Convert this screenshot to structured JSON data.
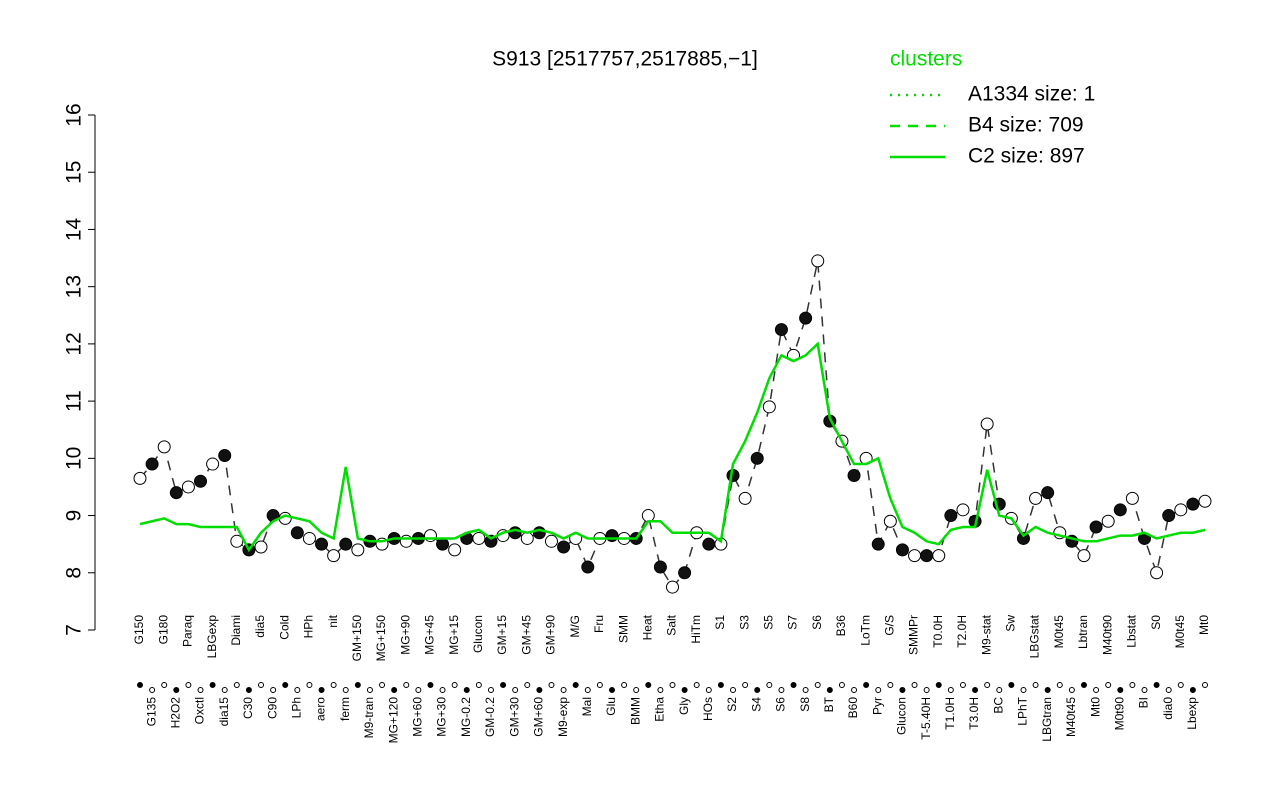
{
  "chart_data": {
    "type": "line",
    "title": "S913 [2517757,2517885,−1]",
    "legend_title": "clusters",
    "legend_position": "top-right",
    "categories": [
      "G150",
      "G135",
      "G180",
      "H2O2",
      "Paraq",
      "Oxctl",
      "LBGexp",
      "dia15",
      "Diami",
      "C30",
      "dia5",
      "C90",
      "Cold",
      "LPh",
      "HPh",
      "aero",
      "nit",
      "ferm",
      "GM+150",
      "M9-tran",
      "MG+150",
      "MG+120",
      "MG+90",
      "MG+60",
      "MG+45",
      "MG+30",
      "MG+15",
      "MG-0.2",
      "Glucon",
      "GM-0.2",
      "GM+15",
      "GM+30",
      "GM+45",
      "GM+60",
      "GM+90",
      "M9-exp",
      "M/G",
      "Mal",
      "Fru",
      "Glu",
      "SMM",
      "BMM",
      "Heat",
      "Etha",
      "Salt",
      "Gly",
      "HiTm",
      "HOs",
      "S1",
      "S2",
      "S3",
      "S4",
      "S5",
      "S6",
      "S7",
      "S8",
      "S6",
      "BT",
      "B36",
      "B60",
      "LoTm",
      "Pyr",
      "G/S",
      "Glucon",
      "SMMPr",
      "T-5.40H",
      "T0.0H",
      "T1.0H",
      "T2.0H",
      "T3.0H",
      "M9-stat",
      "BC",
      "Sw",
      "LPhT",
      "LBGstat",
      "LBGtran",
      "M0t45",
      "M40t45",
      "Lbtran",
      "Mt0",
      "M40t90",
      "M0t90",
      "Lbstat",
      "BI",
      "S0",
      "dia0",
      "M0t45",
      "Lbexp",
      "Mt0"
    ],
    "series": [
      {
        "name": "A1334 size: 1",
        "color": "#00dd00",
        "style": "dotted"
      },
      {
        "name": "B4 size: 709",
        "color": "#00dd00",
        "style": "dashed",
        "line_color": "#333333",
        "values": [
          9.65,
          9.9,
          10.2,
          9.4,
          9.5,
          9.6,
          9.9,
          10.05,
          8.55,
          8.4,
          8.45,
          9.0,
          8.95,
          8.7,
          8.6,
          8.5,
          8.3,
          8.5,
          8.4,
          8.55,
          8.5,
          8.6,
          8.55,
          8.6,
          8.65,
          8.5,
          8.4,
          8.6,
          8.6,
          8.55,
          8.65,
          8.7,
          8.6,
          8.7,
          8.55,
          8.45,
          8.6,
          8.1,
          8.6,
          8.65,
          8.6,
          8.6,
          9.0,
          8.1,
          7.75,
          8.0,
          8.7,
          8.5,
          8.5,
          9.7,
          9.3,
          10.0,
          10.9,
          12.25,
          11.8,
          12.45,
          13.45,
          10.65,
          10.3,
          9.7,
          10.0,
          8.5,
          8.9,
          8.4,
          8.3,
          8.3,
          8.3,
          9.0,
          9.1,
          8.9,
          10.6,
          9.2,
          8.95,
          8.6,
          9.3,
          9.4,
          8.7,
          8.55,
          8.3,
          8.8,
          8.9,
          9.1,
          9.3,
          8.6,
          8.0,
          9.0,
          9.1,
          9.2,
          9.25
        ]
      },
      {
        "name": "C2 size: 897",
        "color": "#00dd00",
        "style": "solid",
        "values": [
          8.85,
          8.9,
          8.95,
          8.85,
          8.85,
          8.8,
          8.8,
          8.8,
          8.8,
          8.4,
          8.7,
          8.9,
          9.0,
          8.95,
          8.9,
          8.7,
          8.6,
          9.85,
          8.6,
          8.55,
          8.55,
          8.6,
          8.6,
          8.6,
          8.6,
          8.6,
          8.6,
          8.7,
          8.75,
          8.6,
          8.7,
          8.75,
          8.7,
          8.75,
          8.7,
          8.6,
          8.7,
          8.6,
          8.6,
          8.6,
          8.6,
          8.6,
          8.9,
          8.9,
          8.7,
          8.7,
          8.7,
          8.7,
          8.55,
          9.9,
          10.3,
          10.8,
          11.4,
          11.8,
          11.7,
          11.8,
          12.0,
          10.7,
          10.3,
          9.9,
          9.9,
          10.0,
          9.3,
          8.8,
          8.7,
          8.55,
          8.5,
          8.75,
          8.8,
          8.8,
          9.8,
          9.0,
          8.95,
          8.65,
          8.8,
          8.7,
          8.65,
          8.6,
          8.55,
          8.55,
          8.6,
          8.65,
          8.65,
          8.7,
          8.6,
          8.65,
          8.7,
          8.7,
          8.75
        ]
      }
    ],
    "ylim": [
      7,
      16
    ],
    "yticks": [
      7,
      8,
      9,
      10,
      11,
      12,
      13,
      14,
      15,
      16
    ]
  }
}
